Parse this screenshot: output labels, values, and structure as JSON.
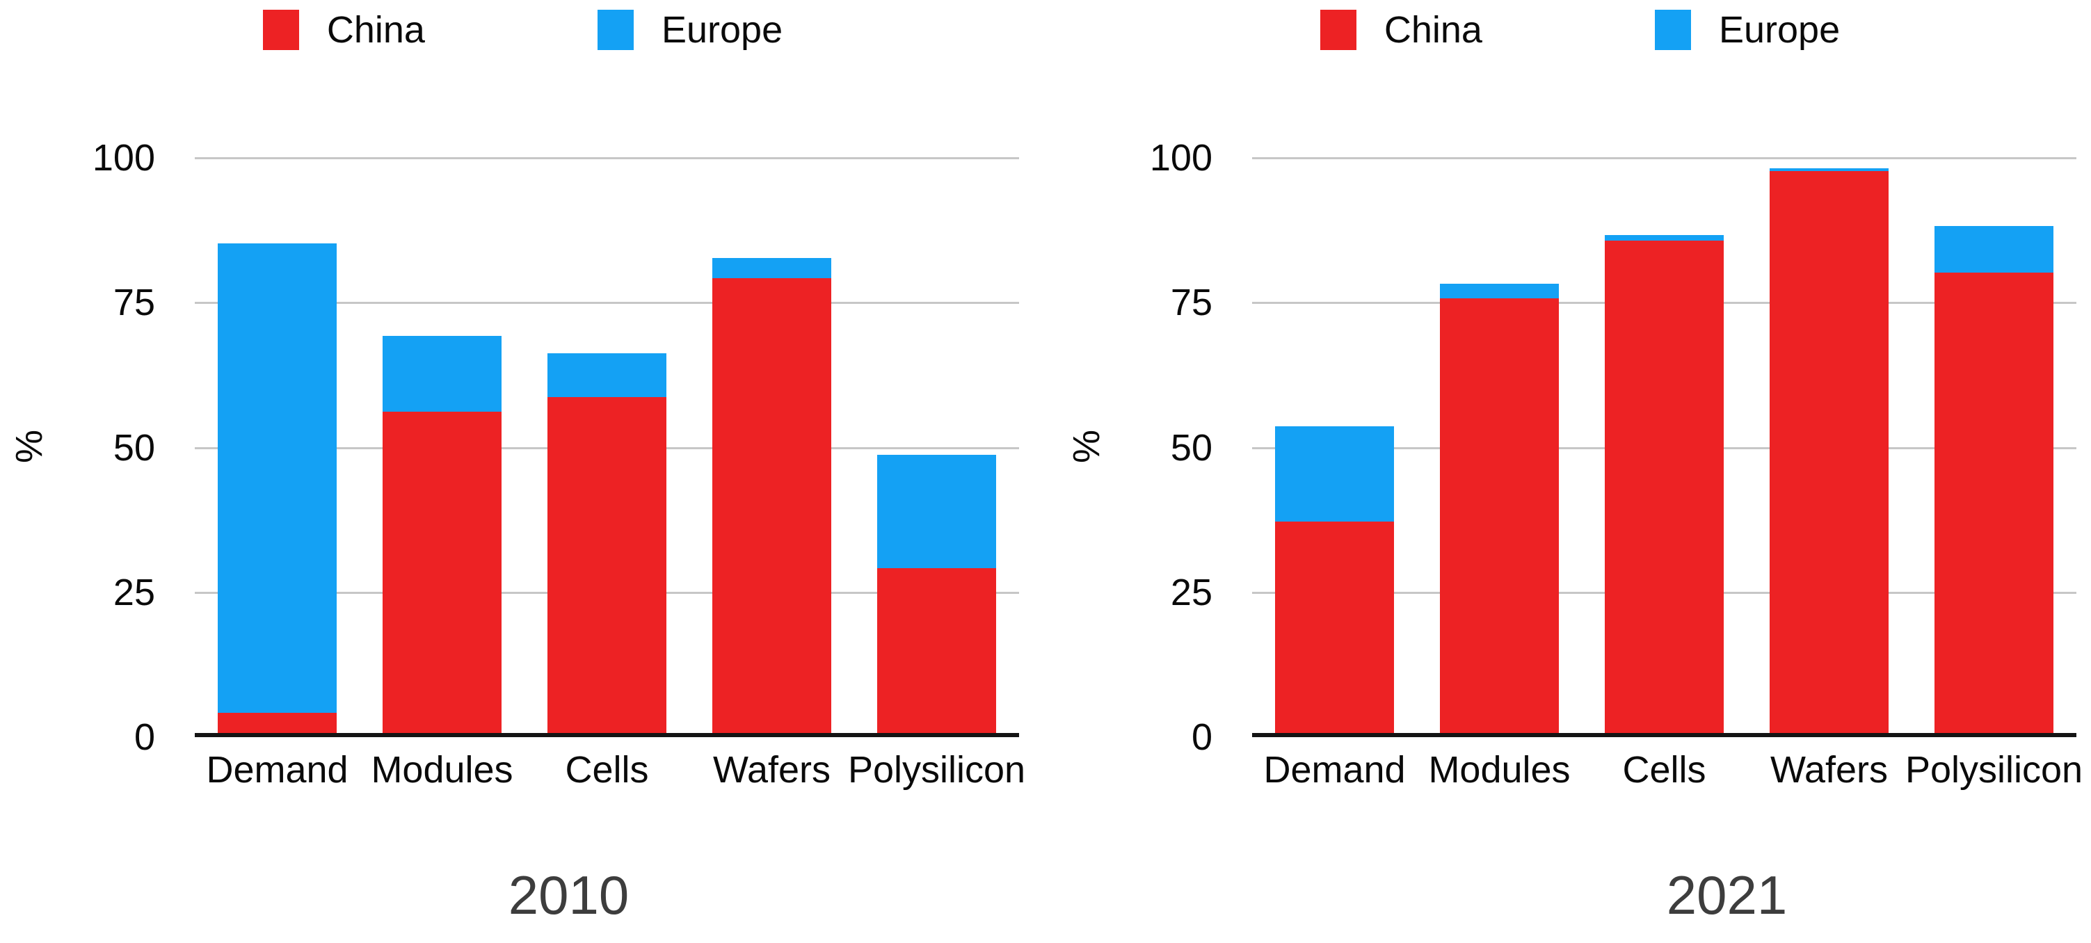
{
  "chart_data": [
    {
      "type": "bar",
      "stacked": true,
      "title": "2010",
      "ylabel": "%",
      "ylim": [
        0,
        100
      ],
      "yticks": [
        0,
        25,
        50,
        75,
        100
      ],
      "grid": true,
      "legend_position": "top",
      "categories": [
        "Demand",
        "Modules",
        "Cells",
        "Wafers",
        "Polysilicon"
      ],
      "series": [
        {
          "name": "China",
          "color": "#ED2224",
          "values": [
            3.5,
            55.5,
            58,
            78.5,
            28.5
          ]
        },
        {
          "name": "Europe",
          "color": "#14A1F4",
          "values": [
            81,
            13,
            7.5,
            3.5,
            19.5
          ]
        }
      ]
    },
    {
      "type": "bar",
      "stacked": true,
      "title": "2021",
      "ylabel": "%",
      "ylim": [
        0,
        100
      ],
      "yticks": [
        0,
        25,
        50,
        75,
        100
      ],
      "grid": true,
      "legend_position": "top",
      "categories": [
        "Demand",
        "Modules",
        "Cells",
        "Wafers",
        "Polysilicon"
      ],
      "series": [
        {
          "name": "China",
          "color": "#ED2224",
          "values": [
            36.5,
            75,
            85,
            97,
            79.5
          ]
        },
        {
          "name": "Europe",
          "color": "#14A1F4",
          "values": [
            16.5,
            2.5,
            1,
            0.5,
            8
          ]
        }
      ]
    }
  ],
  "colors": {
    "china": "#ED2224",
    "europe": "#14A1F4",
    "gridline": "#c7c7c7",
    "axis": "#141414",
    "title_text": "#3d3d3d"
  }
}
